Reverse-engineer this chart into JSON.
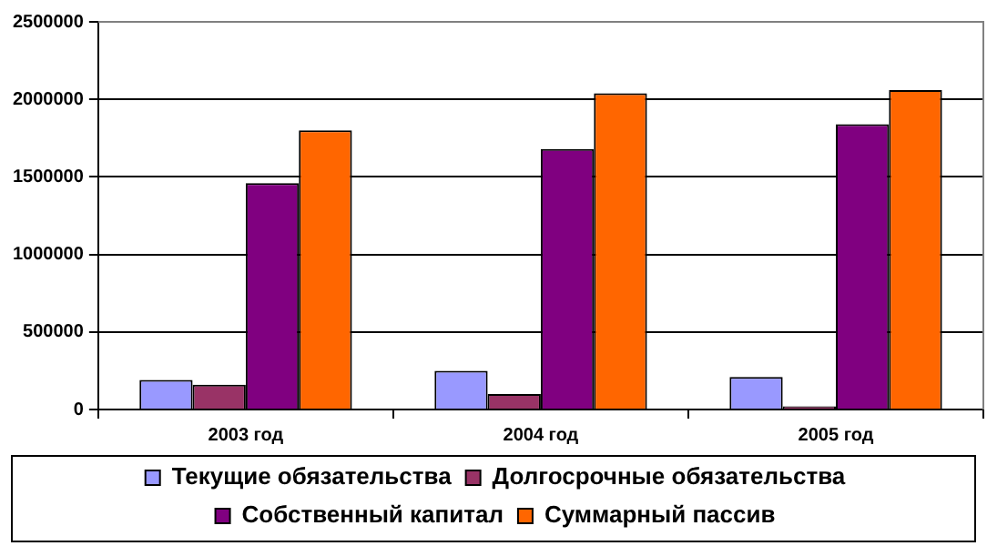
{
  "chart_data": {
    "type": "bar",
    "categories": [
      "2003 год",
      "2004 год",
      "2005 год"
    ],
    "series": [
      {
        "name": "Текущие обязательства",
        "color": "#9999ff",
        "values": [
          190000,
          250000,
          210000
        ]
      },
      {
        "name": "Долгосрочные обязательства",
        "color": "#993366",
        "values": [
          160000,
          100000,
          20000
        ]
      },
      {
        "name": "Собственный капитал",
        "color": "#800080",
        "values": [
          1460000,
          1680000,
          1840000
        ]
      },
      {
        "name": "Суммарный пассив",
        "color": "#ff6600",
        "values": [
          1800000,
          2040000,
          2060000
        ]
      }
    ],
    "ylim": [
      0,
      2500000
    ],
    "yticks": [
      0,
      500000,
      1000000,
      1500000,
      2000000,
      2500000
    ],
    "grid": "y",
    "legend": "bottom"
  }
}
